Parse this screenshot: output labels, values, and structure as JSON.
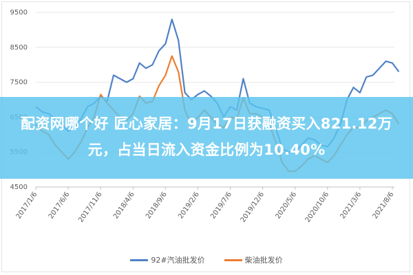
{
  "chart_data": {
    "type": "line",
    "title": "",
    "xlabel": "",
    "ylabel": "",
    "ylim": [
      4500,
      9500
    ],
    "yticks": [
      4500,
      5500,
      6500,
      7500,
      8500,
      9500
    ],
    "grid": true,
    "legend_position": "bottom",
    "xtick_labels": [
      "2017/1/6",
      "2017/6/6",
      "2017/11/6",
      "2018/4/6",
      "2018/9/6",
      "2019/2/6",
      "2019/7/6",
      "2019/12/6",
      "2020/5/6",
      "2020/10/6",
      "2021/3/6",
      "2021/8/6"
    ],
    "x": [
      "2017-01",
      "2017-02",
      "2017-03",
      "2017-04",
      "2017-05",
      "2017-06",
      "2017-07",
      "2017-08",
      "2017-09",
      "2017-10",
      "2017-11",
      "2017-12",
      "2018-01",
      "2018-02",
      "2018-03",
      "2018-04",
      "2018-05",
      "2018-06",
      "2018-07",
      "2018-08",
      "2018-09",
      "2018-10",
      "2018-11",
      "2018-12",
      "2019-01",
      "2019-02",
      "2019-03",
      "2019-04",
      "2019-05",
      "2019-06",
      "2019-07",
      "2019-08",
      "2019-09",
      "2019-10",
      "2019-11",
      "2019-12",
      "2020-01",
      "2020-02",
      "2020-03",
      "2020-04",
      "2020-05",
      "2020-06",
      "2020-07",
      "2020-08",
      "2020-09",
      "2020-10",
      "2020-11",
      "2020-12",
      "2021-01",
      "2021-02",
      "2021-03",
      "2021-04",
      "2021-05",
      "2021-06",
      "2021-07",
      "2021-08",
      "2021-09"
    ],
    "series": [
      {
        "name": "92#汽油批发价",
        "color": "#4f81c7",
        "values": [
          6800,
          6650,
          6600,
          6450,
          6300,
          6100,
          6200,
          6450,
          6800,
          6900,
          7100,
          6950,
          7700,
          7600,
          7500,
          7600,
          8050,
          7900,
          8000,
          8400,
          8600,
          9300,
          8700,
          7200,
          7000,
          7150,
          7250,
          7100,
          6900,
          6500,
          6800,
          6700,
          7600,
          6900,
          6800,
          6750,
          6700,
          6200,
          5600,
          5500,
          5500,
          5700,
          5900,
          5850,
          5700,
          5650,
          5900,
          6300,
          7000,
          7350,
          7200,
          7650,
          7700,
          7900,
          8100,
          8050,
          7800
        ]
      },
      {
        "name": "柴油批发价",
        "color": "#ed7d31",
        "values": [
          6300,
          6100,
          6000,
          5700,
          5500,
          5300,
          5500,
          5800,
          6200,
          6500,
          7150,
          6900,
          6700,
          6500,
          6400,
          6600,
          7100,
          6900,
          6950,
          7400,
          7700,
          8250,
          7800,
          6700,
          6300,
          6500,
          6700,
          6500,
          6300,
          6200,
          6500,
          6450,
          7050,
          6600,
          6600,
          6500,
          6300,
          5800,
          5200,
          4950,
          4950,
          5100,
          5300,
          5400,
          5300,
          5200,
          5400,
          5700,
          6000,
          6200,
          6200,
          6400,
          6500,
          6600,
          6700,
          6600,
          6300
        ]
      }
    ]
  },
  "banner": {
    "text": "配资网哪个好 匠心家居：9月17日获融资买入821.12万元，占当日流入资金比例为10.40%"
  }
}
